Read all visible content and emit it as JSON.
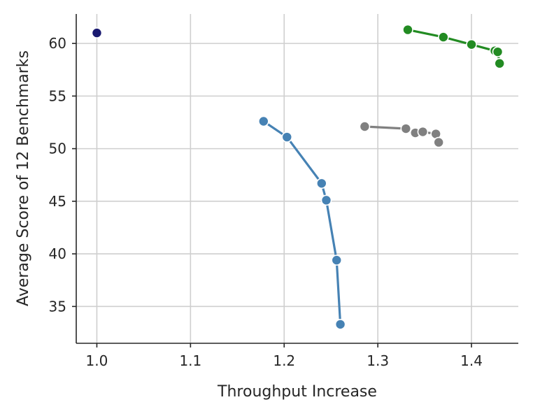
{
  "chart_data": {
    "type": "line",
    "title": "",
    "xlabel": "Throughput Increase",
    "ylabel": "Average Score of 12 Benchmarks",
    "xlim": [
      0.978,
      1.45
    ],
    "ylim": [
      31.5,
      62.8
    ],
    "xticks": [
      1.0,
      1.1,
      1.2,
      1.3,
      1.4
    ],
    "xtick_labels": [
      "1.0",
      "1.1",
      "1.2",
      "1.3",
      "1.4"
    ],
    "yticks": [
      35,
      40,
      45,
      50,
      55,
      60
    ],
    "ytick_labels": [
      "35",
      "40",
      "45",
      "50",
      "55",
      "60"
    ],
    "grid": true,
    "legend": false,
    "series": [
      {
        "color": "#191970",
        "marker": "circle",
        "line": false,
        "points": [
          [
            1.0,
            61.0
          ]
        ]
      },
      {
        "color": "#4682b4",
        "marker": "circle",
        "line": true,
        "points": [
          [
            1.178,
            52.6
          ],
          [
            1.203,
            51.1
          ],
          [
            1.24,
            46.7
          ],
          [
            1.245,
            45.1
          ],
          [
            1.256,
            39.4
          ],
          [
            1.26,
            33.3
          ]
        ]
      },
      {
        "color": "#808080",
        "marker": "circle",
        "line": true,
        "points": [
          [
            1.286,
            52.1
          ],
          [
            1.33,
            51.9
          ],
          [
            1.34,
            51.5
          ],
          [
            1.348,
            51.6
          ],
          [
            1.362,
            51.4
          ],
          [
            1.365,
            50.6
          ]
        ]
      },
      {
        "color": "#228b22",
        "marker": "circle",
        "line": true,
        "points": [
          [
            1.332,
            61.3
          ],
          [
            1.37,
            60.6
          ],
          [
            1.4,
            59.9
          ],
          [
            1.425,
            59.3
          ],
          [
            1.428,
            59.2
          ],
          [
            1.43,
            58.1
          ]
        ]
      }
    ]
  }
}
